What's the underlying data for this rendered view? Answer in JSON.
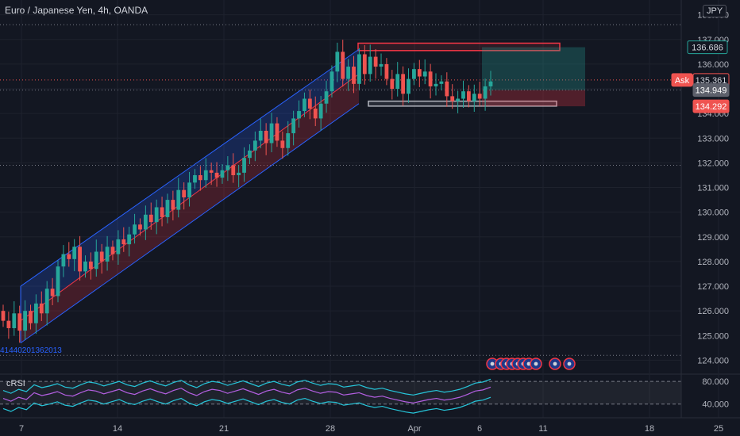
{
  "header": {
    "symbol_title": "Euro / Japanese Yen, 4h, OANDA",
    "currency_badge": "JPY"
  },
  "indicator": {
    "name": "cRSI",
    "levels": [
      "80.000",
      "40.000"
    ]
  },
  "drawing_code": "41440201362013",
  "colors": {
    "background": "#131722",
    "up_candle": "#26a69a",
    "down_candle": "#ef5350",
    "channel_blue": "#2962ff",
    "channel_red": "#f23645",
    "rsi_line": "#b45fe2",
    "rsi_band": "#26c6da"
  },
  "chart_data": {
    "type": "candlestick",
    "x_tick_labels": [
      "7",
      "14",
      "21",
      "28",
      "Apr",
      "6",
      "11",
      "18",
      "25"
    ],
    "y_tick_labels": [
      "124.000",
      "125.000",
      "126.000",
      "127.000",
      "128.000",
      "129.000",
      "130.000",
      "131.000",
      "132.000",
      "133.000",
      "134.000",
      "135.000",
      "136.000",
      "137.000",
      "138.000"
    ],
    "y_range": [
      123.5,
      138.6
    ],
    "price_badges": [
      {
        "label": "136.686",
        "value": 136.686,
        "kind": "target"
      },
      {
        "label": "Ask",
        "value": 135.361,
        "kind": "ask"
      },
      {
        "label": "135.361",
        "value": 135.361,
        "kind": "price"
      },
      {
        "label": "134.949",
        "value": 134.949,
        "kind": "bid"
      },
      {
        "label": "134.292",
        "value": 134.292,
        "kind": "stop"
      }
    ],
    "zones": {
      "resistance": [
        136.55,
        136.85
      ],
      "support": [
        134.3,
        134.5
      ],
      "long_entry": 134.949,
      "long_target": 136.686,
      "long_stop": 134.292
    },
    "trend_channel_start": {
      "upper": 127.0,
      "mid": 125.6,
      "lower": 124.7
    },
    "trend_channel_end": {
      "upper": 136.6,
      "mid": 135.6,
      "lower": 134.4
    },
    "candle_closes": [
      125.6,
      125.3,
      125.9,
      125.2,
      126.0,
      125.5,
      126.3,
      125.9,
      126.9,
      126.6,
      127.8,
      128.3,
      128.1,
      128.6,
      127.6,
      128.0,
      127.7,
      128.4,
      128.0,
      128.6,
      128.3,
      128.9,
      128.7,
      129.1,
      129.5,
      129.3,
      129.9,
      129.6,
      130.2,
      129.8,
      130.5,
      130.1,
      130.9,
      130.6,
      131.2,
      131.5,
      131.3,
      131.7,
      131.6,
      131.4,
      131.7,
      131.9,
      131.5,
      131.6,
      132.2,
      132.5,
      132.9,
      133.3,
      132.8,
      133.6,
      132.9,
      132.6,
      133.2,
      133.8,
      134.1,
      134.6,
      134.2,
      133.8,
      134.4,
      134.9,
      135.7,
      136.5,
      135.4,
      135.9,
      135.2,
      136.4,
      135.6,
      136.3,
      135.9,
      136.0,
      135.4,
      135.0,
      135.6,
      134.8,
      135.4,
      135.8,
      135.5,
      135.7,
      135.1,
      135.2,
      135.3,
      134.7,
      134.5,
      134.6,
      134.9,
      134.5,
      134.8,
      134.6,
      135.1,
      135.3
    ],
    "rsi_series": [
      50,
      45,
      52,
      48,
      60,
      55,
      58,
      62,
      56,
      54,
      60,
      65,
      63,
      58,
      62,
      66,
      60,
      57,
      63,
      67,
      62,
      58,
      64,
      68,
      60,
      55,
      62,
      66,
      64,
      59,
      63,
      67,
      62,
      57,
      63,
      66,
      61,
      58,
      65,
      68,
      63,
      59,
      62,
      61,
      56,
      58,
      60,
      55,
      52,
      54,
      50,
      47,
      44,
      42,
      45,
      48,
      50,
      47,
      49,
      52,
      57,
      63,
      65,
      70
    ],
    "rsi_range": [
      20,
      90
    ]
  }
}
